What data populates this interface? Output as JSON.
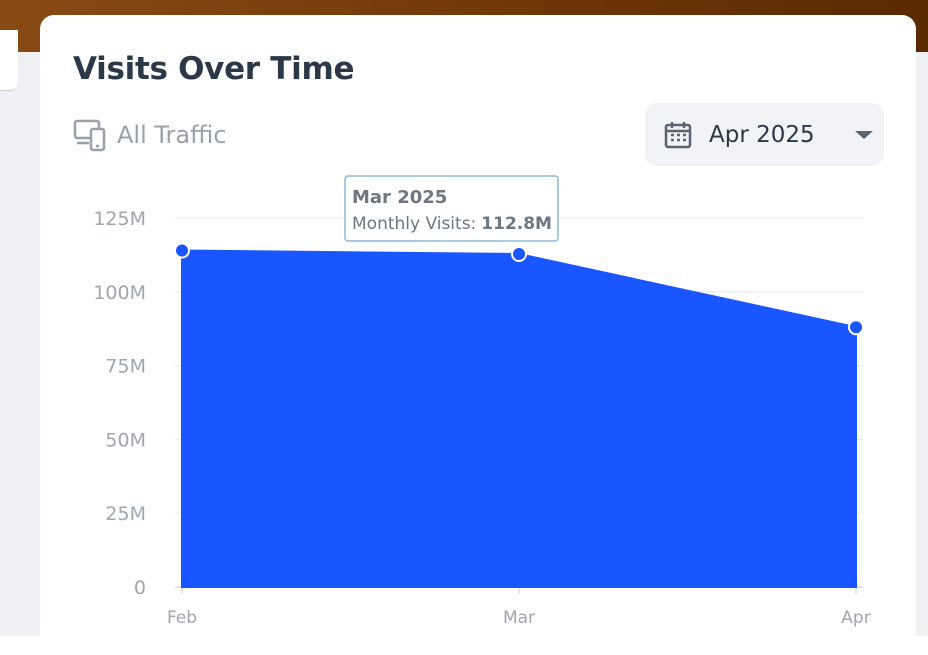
{
  "header": {
    "title": "Visits Over Time",
    "filter": "All Traffic",
    "period": "Apr 2025"
  },
  "chart_data": {
    "type": "area",
    "categories": [
      "Feb",
      "Mar",
      "Apr"
    ],
    "series": [
      {
        "name": "Monthly Visits",
        "color": "#1a56ff",
        "values": [
          114000000,
          112800000,
          88000000
        ]
      }
    ],
    "ylim": [
      0,
      125000000
    ],
    "yticks": [
      0,
      {
        "value": 25000000,
        "label": "25M"
      },
      {
        "value": 50000000,
        "label": "50M"
      },
      {
        "value": 75000000,
        "label": "75M"
      },
      {
        "value": 100000000,
        "label": "100M"
      },
      {
        "value": 125000000,
        "label": "125M"
      }
    ],
    "grid": true,
    "tooltip": {
      "title": "Mar 2025",
      "label": "Monthly Visits:",
      "value": "112.8M"
    }
  }
}
